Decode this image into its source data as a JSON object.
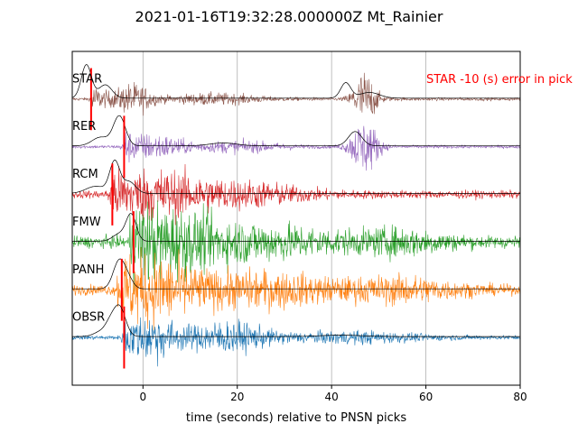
{
  "chart_data": {
    "type": "line",
    "title": "2021-01-16T19:32:28.000000Z Mt_Rainier",
    "xlabel": "time (seconds) relative to PNSN picks",
    "ylabel": "",
    "xlim": [
      -15,
      80
    ],
    "x_ticks": [
      0,
      20,
      40,
      60,
      80
    ],
    "x_tick_labels": [
      "0",
      "20",
      "40",
      "60",
      "80"
    ],
    "grid": "vertical",
    "annotation": "STAR -10 (s) error in pick",
    "series": [
      {
        "name": "STAR",
        "color": "#8c564b",
        "pick_time": -11,
        "pick_offset": 2.0
      },
      {
        "name": "RER",
        "color": "#9467bd",
        "pick_time": -4,
        "pick_offset": 1.0
      },
      {
        "name": "RCM",
        "color": "#d62728",
        "pick_time": -6.5,
        "pick_offset": 0.0
      },
      {
        "name": "FMW",
        "color": "#2ca02c",
        "pick_time": -2,
        "pick_offset": -1.0
      },
      {
        "name": "PANH",
        "color": "#ff7f0e",
        "pick_time": -4.5,
        "pick_offset": -2.0
      },
      {
        "name": "OBSR",
        "color": "#1f77b4",
        "pick_time": -4,
        "pick_offset": -3.0
      }
    ]
  }
}
